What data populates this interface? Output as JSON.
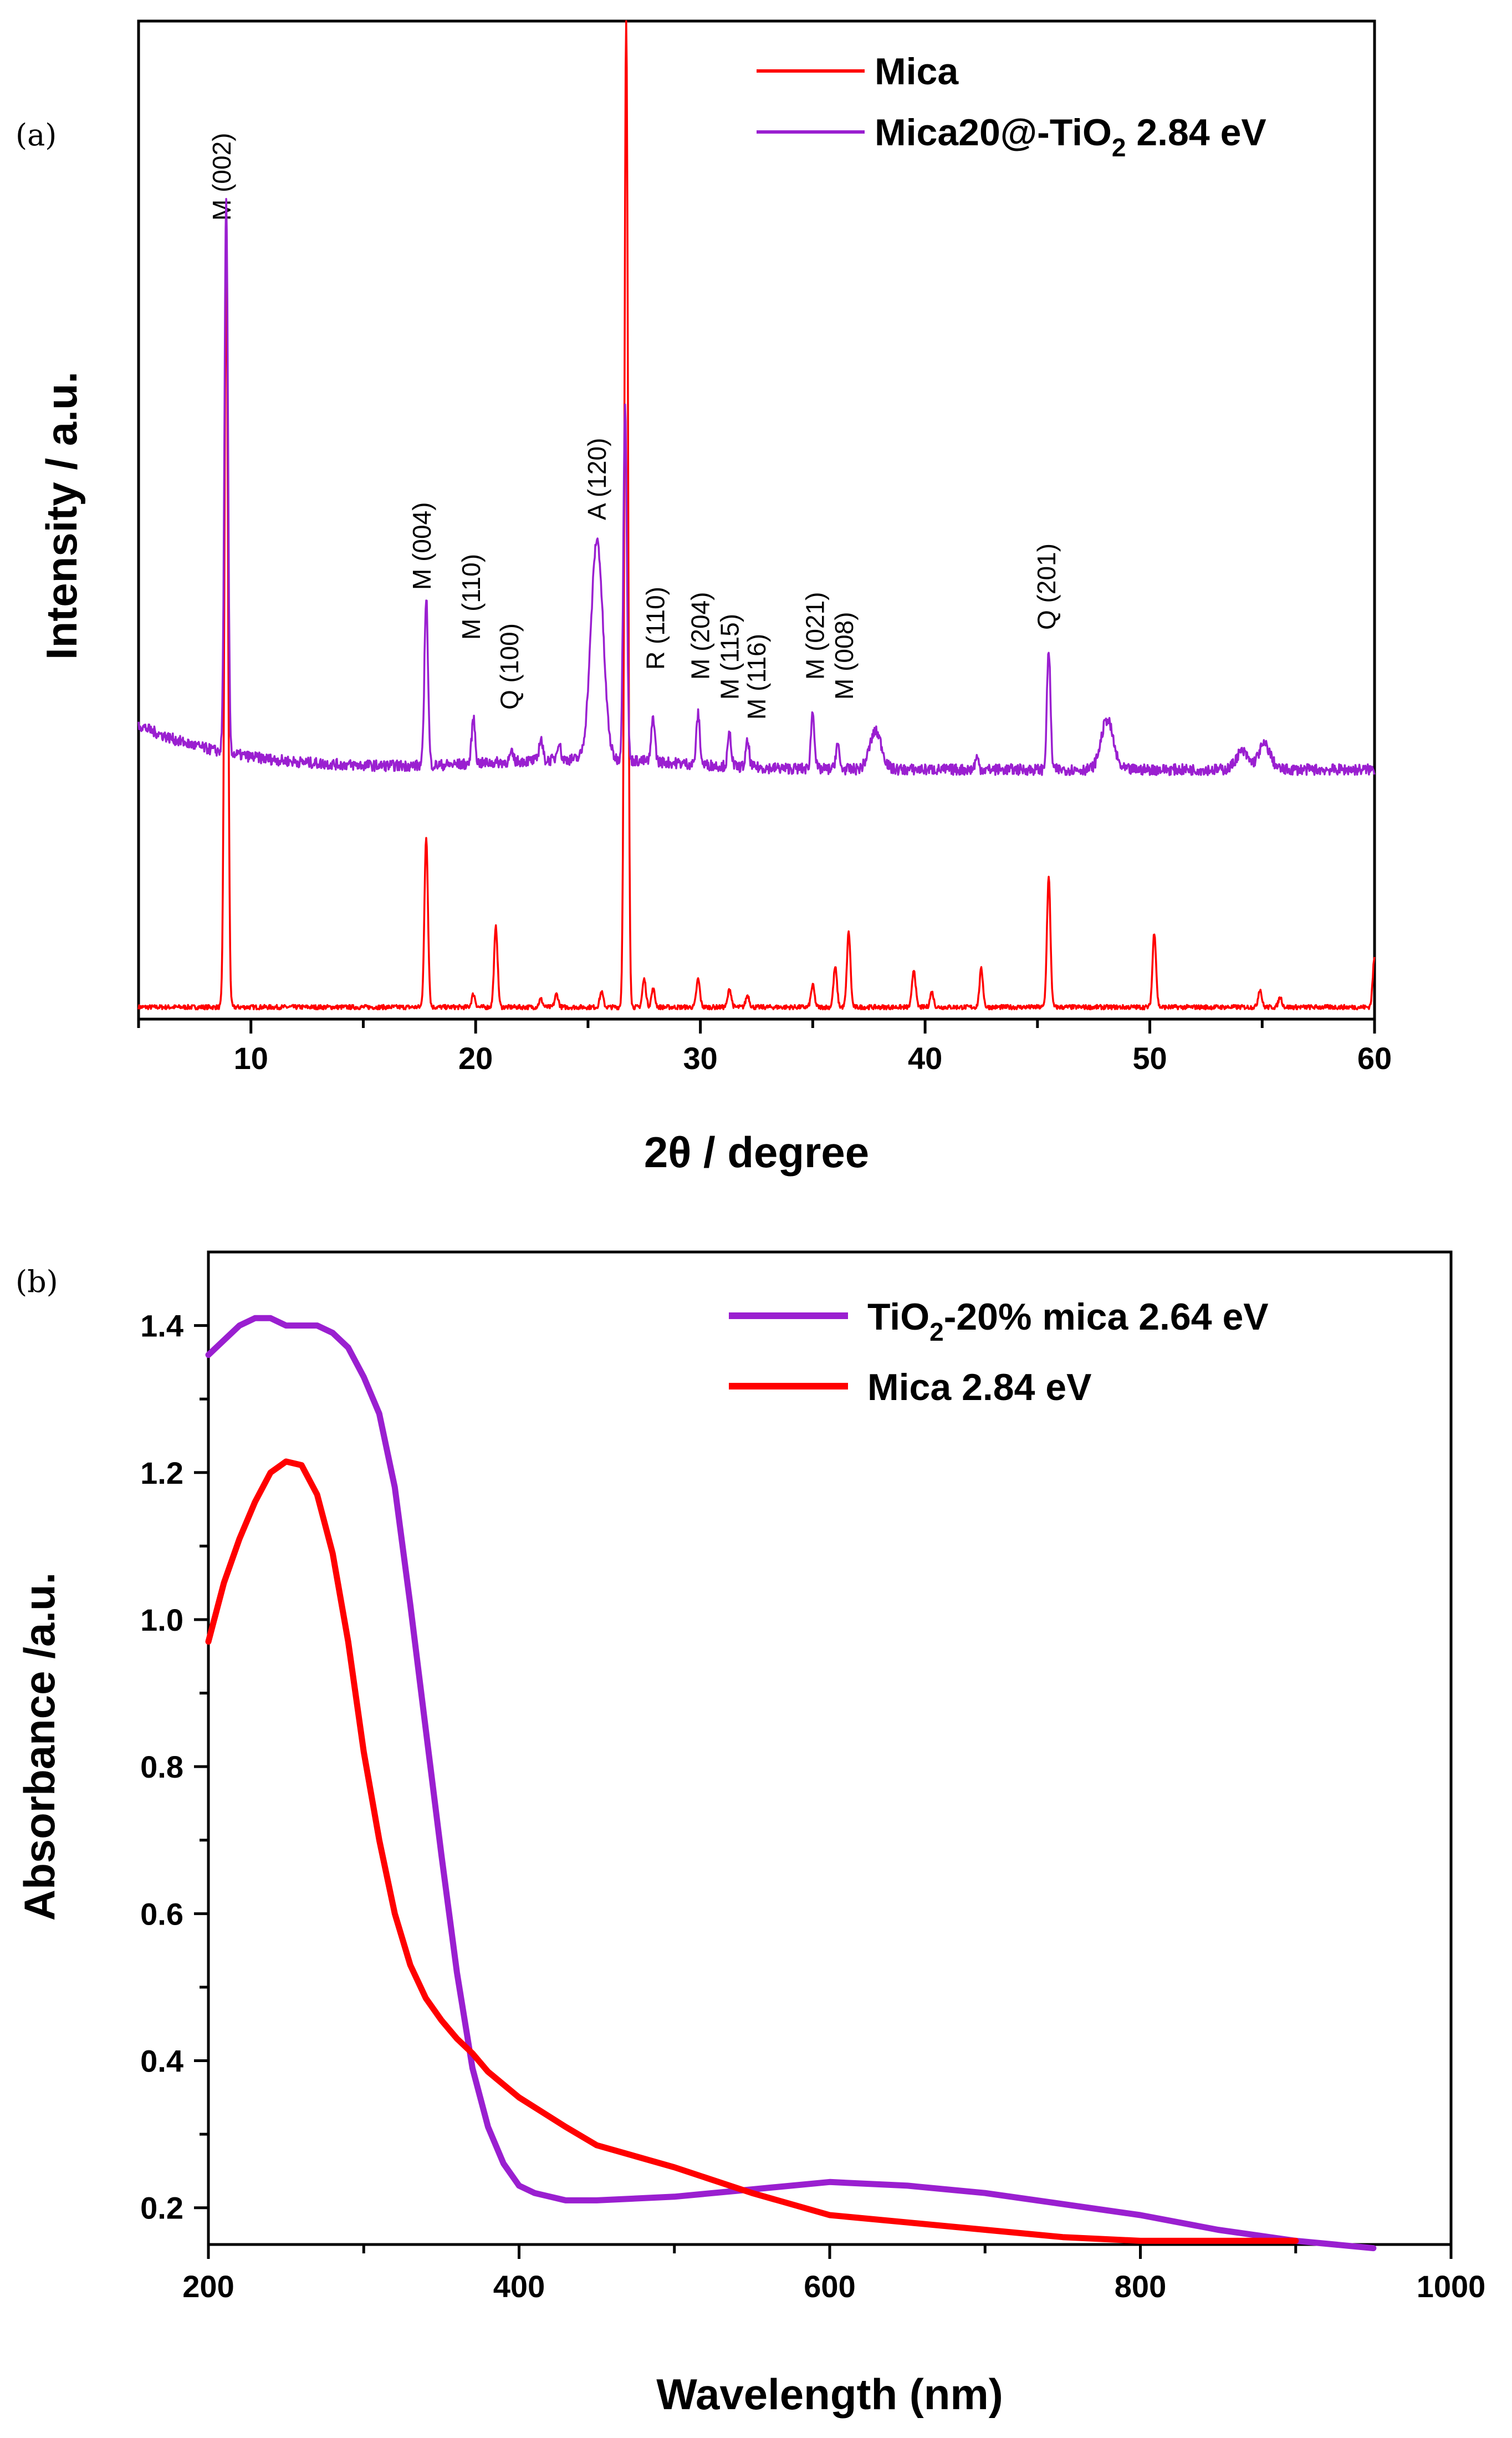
{
  "chart_data": [
    {
      "panel": "(a)",
      "type": "line",
      "xlabel": "2θ / degree",
      "ylabel": "Intensity / a.u.",
      "xlim": [
        5,
        60
      ],
      "ylim": [
        0,
        100
      ],
      "xticks": [
        "10",
        "20",
        "30",
        "40",
        "50",
        "60"
      ],
      "yticks_visible": false,
      "series": [
        {
          "name": "Mica",
          "color": "#ff0000",
          "baseline": 1.2,
          "peaks": [
            {
              "x": 8.9,
              "h": 76
            },
            {
              "x": 17.8,
              "h": 17
            },
            {
              "x": 19.9,
              "h": 1.3
            },
            {
              "x": 20.9,
              "h": 8
            },
            {
              "x": 22.9,
              "h": 0.8
            },
            {
              "x": 23.6,
              "h": 1.3
            },
            {
              "x": 25.6,
              "h": 1.5
            },
            {
              "x": 26.7,
              "h": 99
            },
            {
              "x": 27.5,
              "h": 2.8
            },
            {
              "x": 27.9,
              "h": 1.8
            },
            {
              "x": 29.9,
              "h": 2.8
            },
            {
              "x": 31.3,
              "h": 1.8
            },
            {
              "x": 32.1,
              "h": 1.2
            },
            {
              "x": 35.0,
              "h": 2.2
            },
            {
              "x": 36.0,
              "h": 4.0
            },
            {
              "x": 36.6,
              "h": 7.5
            },
            {
              "x": 39.5,
              "h": 3.8
            },
            {
              "x": 40.3,
              "h": 1.5
            },
            {
              "x": 42.5,
              "h": 3.8
            },
            {
              "x": 45.5,
              "h": 13
            },
            {
              "x": 50.2,
              "h": 7.5
            },
            {
              "x": 54.9,
              "h": 1.8
            },
            {
              "x": 55.8,
              "h": 1.0
            },
            {
              "x": 60.0,
              "h": 5.0
            }
          ]
        },
        {
          "name": "Mica20@-TiO2 2.84 eV",
          "color": "#9a1fd0",
          "baseline": 25,
          "peaks": [
            {
              "x": 8.9,
              "h": 55
            },
            {
              "x": 17.8,
              "h": 17
            },
            {
              "x": 19.9,
              "h": 4.5
            },
            {
              "x": 21.6,
              "h": 0.8
            },
            {
              "x": 22.9,
              "h": 2.2
            },
            {
              "x": 23.7,
              "h": 1.8
            },
            {
              "x": 25.4,
              "h": 22
            },
            {
              "x": 26.65,
              "h": 36
            },
            {
              "x": 27.9,
              "h": 4.5
            },
            {
              "x": 29.9,
              "h": 5.0
            },
            {
              "x": 31.3,
              "h": 3.2
            },
            {
              "x": 32.1,
              "h": 2.5
            },
            {
              "x": 35.0,
              "h": 5.8
            },
            {
              "x": 36.1,
              "h": 2.5
            },
            {
              "x": 37.8,
              "h": 3.8
            },
            {
              "x": 42.3,
              "h": 1.2
            },
            {
              "x": 45.5,
              "h": 12
            },
            {
              "x": 48.1,
              "h": 5.0
            },
            {
              "x": 54.1,
              "h": 1.8
            },
            {
              "x": 55.1,
              "h": 2.5
            }
          ]
        }
      ],
      "annotations": [
        {
          "text": "M (002)",
          "x": 8.7,
          "y": 80
        },
        {
          "text": "M (004)",
          "x": 17.6,
          "y": 43
        },
        {
          "text": "M (110)",
          "x": 19.8,
          "y": 38
        },
        {
          "text": "Q (100)",
          "x": 21.5,
          "y": 31
        },
        {
          "text": "A (120)",
          "x": 25.4,
          "y": 50
        },
        {
          "text": "R (110)",
          "x": 28.0,
          "y": 35
        },
        {
          "text": "M (204)",
          "x": 30.0,
          "y": 34
        },
        {
          "text": "M (115)",
          "x": 31.3,
          "y": 32
        },
        {
          "text": "M (116)",
          "x": 32.5,
          "y": 30
        },
        {
          "text": "M (021)",
          "x": 35.1,
          "y": 34
        },
        {
          "text": "M (008)",
          "x": 36.4,
          "y": 32
        },
        {
          "text": "Q (201)",
          "x": 45.4,
          "y": 39
        }
      ],
      "legend": {
        "position": "top-right",
        "entries": [
          {
            "label": "Mica",
            "color": "#ff0000"
          },
          {
            "label_main": "Mica20@-TiO",
            "label_sub": "2",
            "label_tail": " 2.84 eV",
            "color": "#9a1fd0"
          }
        ]
      }
    },
    {
      "panel": "(b)",
      "type": "line",
      "xlabel": "Wavelength (nm)",
      "ylabel": "Absorbance /a.u.",
      "xlim": [
        200,
        1000
      ],
      "ylim": [
        0.15,
        1.5
      ],
      "xticks": [
        "200",
        "400",
        "600",
        "800",
        "1000"
      ],
      "yticks": [
        "0.2",
        "0.4",
        "0.6",
        "0.8",
        "1.0",
        "1.2",
        "1.4"
      ],
      "series": [
        {
          "name": "TiO2-20% mica 2.64 eV",
          "color": "#9a1fd0",
          "x": [
            200,
            210,
            220,
            230,
            240,
            250,
            260,
            270,
            280,
            290,
            300,
            310,
            320,
            330,
            340,
            350,
            360,
            370,
            380,
            390,
            400,
            410,
            420,
            430,
            450,
            500,
            550,
            600,
            650,
            700,
            750,
            800,
            850,
            900,
            950
          ],
          "y": [
            1.36,
            1.38,
            1.4,
            1.41,
            1.41,
            1.4,
            1.4,
            1.4,
            1.39,
            1.37,
            1.33,
            1.28,
            1.18,
            1.02,
            0.85,
            0.68,
            0.52,
            0.39,
            0.31,
            0.26,
            0.23,
            0.22,
            0.215,
            0.21,
            0.21,
            0.215,
            0.225,
            0.235,
            0.23,
            0.22,
            0.205,
            0.19,
            0.17,
            0.155,
            0.145
          ]
        },
        {
          "name": "Mica 2.84 eV",
          "color": "#ff0000",
          "x": [
            200,
            210,
            220,
            230,
            240,
            250,
            260,
            270,
            280,
            290,
            300,
            310,
            320,
            330,
            340,
            350,
            360,
            370,
            380,
            400,
            430,
            450,
            500,
            550,
            600,
            650,
            700,
            750,
            800,
            850,
            900
          ],
          "y": [
            0.97,
            1.05,
            1.11,
            1.16,
            1.2,
            1.215,
            1.21,
            1.17,
            1.09,
            0.97,
            0.82,
            0.7,
            0.6,
            0.53,
            0.485,
            0.455,
            0.43,
            0.41,
            0.385,
            0.35,
            0.31,
            0.285,
            0.255,
            0.22,
            0.19,
            0.18,
            0.17,
            0.16,
            0.155,
            0.155,
            0.155
          ]
        }
      ],
      "legend": {
        "position": "top-right",
        "entries": [
          {
            "label_main": "TiO",
            "label_sub": "2",
            "label_tail": "-20% mica 2.64 eV",
            "color": "#9a1fd0"
          },
          {
            "label": "Mica 2.84 eV",
            "color": "#ff0000"
          }
        ]
      }
    }
  ]
}
